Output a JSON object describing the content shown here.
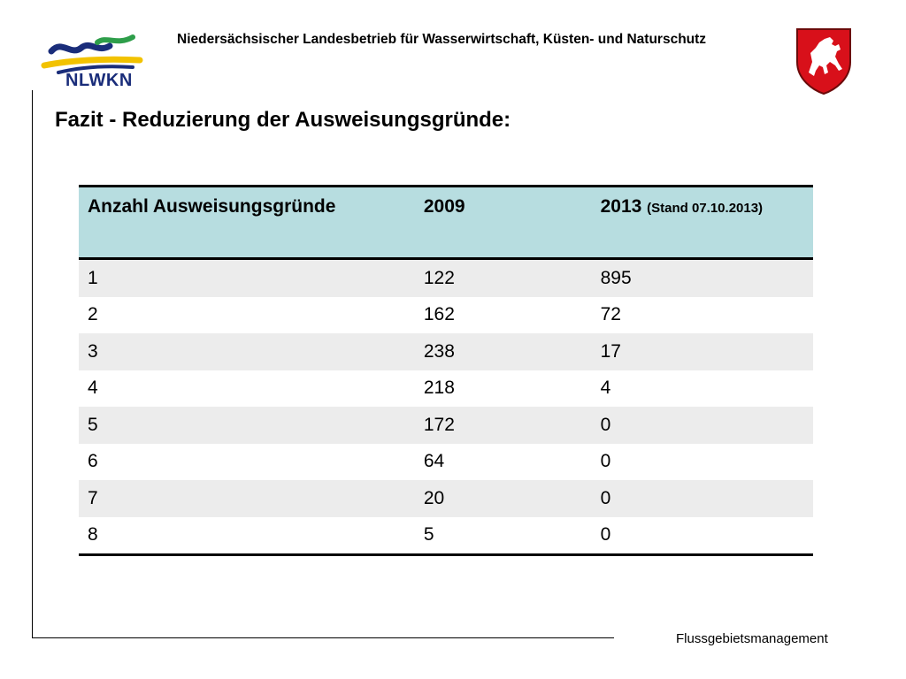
{
  "header": {
    "org_name": "Niedersächsischer Landesbetrieb für Wasserwirtschaft, Küsten- und Naturschutz",
    "logo_text": "NLWKN",
    "crest_icon": "lower-saxony-horse-crest-icon"
  },
  "colors": {
    "table_header_bg": "#b7dde0",
    "row_alt_bg": "#ececec",
    "logo_blue": "#1a2d7a",
    "logo_yellow": "#f2c200",
    "logo_green": "#2e9e4a",
    "crest_red": "#d8101a"
  },
  "page": {
    "title": "Fazit - Reduzierung der Ausweisungsgründe:"
  },
  "table": {
    "headers": {
      "col1": "Anzahl Ausweisungsgründe",
      "col2": "2009",
      "col3": "2013",
      "col3_note": "(Stand 07.10.2013)"
    },
    "rows": [
      [
        "1",
        "122",
        "895"
      ],
      [
        "2",
        "162",
        "72"
      ],
      [
        "3",
        "238",
        "17"
      ],
      [
        "4",
        "218",
        "4"
      ],
      [
        "5",
        "172",
        "0"
      ],
      [
        "6",
        "64",
        "0"
      ],
      [
        "7",
        "20",
        "0"
      ],
      [
        "8",
        "5",
        "0"
      ]
    ]
  },
  "footer": {
    "text": "Flussgebietsmanagement"
  }
}
